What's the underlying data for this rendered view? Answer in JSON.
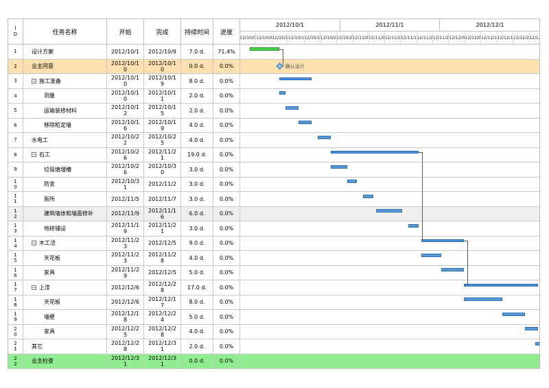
{
  "columns": {
    "id_top": "I",
    "id_bottom": "D",
    "name": "任务名称",
    "start": "开始",
    "end": "完成",
    "duration": "持续时间",
    "progress": "进度"
  },
  "timeline": {
    "months": [
      "2012/10/1",
      "2012/11/1",
      "2012/12/1"
    ],
    "sub_ticks": [
      "12/10/0",
      "12/10/0",
      "12/10/1",
      "12/10/1",
      "12/10/1",
      "12/10/2",
      "12/10/2",
      "12/11/0",
      "12/11/0",
      "12/11/1",
      "12/11/1",
      "12/11/2",
      "12/11/2",
      "12/12/0",
      "12/12/0",
      "12/12/1",
      "12/12/1",
      "12/12/2",
      "12/12/2"
    ]
  },
  "tasks": [
    {
      "id": [
        "1"
      ],
      "name": "设计方案",
      "start": "2012/10/1",
      "end": "2012/10/9",
      "duration": "7.0 d.",
      "progress": "71.4%",
      "highlight": "",
      "indent": false,
      "summary": false
    },
    {
      "id": [
        "2"
      ],
      "name": "业主同意",
      "start": "2012/10/10",
      "end": "2012/10/10",
      "duration": "0.0 d.",
      "progress": "0.0%",
      "highlight": "orange",
      "indent": false,
      "summary": false
    },
    {
      "id": [
        "3"
      ],
      "name": "施工准备",
      "start": "2012/10/10",
      "end": "2012/10/19",
      "duration": "8.0 d.",
      "progress": "0.0%",
      "highlight": "",
      "indent": false,
      "summary": true
    },
    {
      "id": [
        "4"
      ],
      "name": "测量",
      "start": "2012/10/10",
      "end": "2012/10/11",
      "duration": "2.0 d.",
      "progress": "0.0%",
      "highlight": "",
      "indent": true,
      "summary": false
    },
    {
      "id": [
        "5"
      ],
      "name": "运输装修材料",
      "start": "2012/10/12",
      "end": "2012/10/15",
      "duration": "2.0 d.",
      "progress": "0.0%",
      "highlight": "",
      "indent": true,
      "summary": false
    },
    {
      "id": [
        "6"
      ],
      "name": "移除柜定墙",
      "start": "2012/10/16",
      "end": "2012/10/19",
      "duration": "4.0 d.",
      "progress": "0.0%",
      "highlight": "",
      "indent": true,
      "summary": false
    },
    {
      "id": [
        "7"
      ],
      "name": "水电工",
      "start": "2012/10/22",
      "end": "2012/10/25",
      "duration": "4.0 d.",
      "progress": "0.0%",
      "highlight": "",
      "indent": false,
      "summary": false
    },
    {
      "id": [
        "8"
      ],
      "name": "石工",
      "start": "2012/10/26",
      "end": "2012/11/21",
      "duration": "19.0 d.",
      "progress": "0.0%",
      "highlight": "",
      "indent": false,
      "summary": true
    },
    {
      "id": [
        "9"
      ],
      "name": "垃圾填埋槽",
      "start": "2012/10/26",
      "end": "2012/10/30",
      "duration": "3.0 d.",
      "progress": "0.0%",
      "highlight": "",
      "indent": true,
      "summary": false
    },
    {
      "id": [
        "1",
        "0"
      ],
      "name": "防变",
      "start": "2012/10/31",
      "end": "2012/11/2",
      "duration": "3.0 d.",
      "progress": "0.0%",
      "highlight": "",
      "indent": true,
      "summary": false
    },
    {
      "id": [
        "1",
        "1"
      ],
      "name": "厕所",
      "start": "2012/11/5",
      "end": "2012/11/7",
      "duration": "3.0 d.",
      "progress": "0.0%",
      "highlight": "",
      "indent": true,
      "summary": false
    },
    {
      "id": [
        "1",
        "2"
      ],
      "name": "建筑墙体和墙面修补",
      "start": "2012/11/9",
      "end": "2012/11/16",
      "duration": "6.0 d.",
      "progress": "0.0%",
      "highlight": "gray",
      "indent": true,
      "summary": false
    },
    {
      "id": [
        "1",
        "3"
      ],
      "name": "地砖铺设",
      "start": "2012/11/19",
      "end": "2012/11/21",
      "duration": "3.0 d.",
      "progress": "0.0%",
      "highlight": "",
      "indent": true,
      "summary": false
    },
    {
      "id": [
        "1",
        "4"
      ],
      "name": "木工活",
      "start": "2012/11/23",
      "end": "2012/12/5",
      "duration": "9.0 d.",
      "progress": "0.0%",
      "highlight": "",
      "indent": false,
      "summary": true
    },
    {
      "id": [
        "1",
        "5"
      ],
      "name": "天花板",
      "start": "2012/11/23",
      "end": "2012/11/28",
      "duration": "4.0 d.",
      "progress": "0.0%",
      "highlight": "",
      "indent": true,
      "summary": false
    },
    {
      "id": [
        "1",
        "6"
      ],
      "name": "家具",
      "start": "2012/11/29",
      "end": "2012/12/5",
      "duration": "5.0 d.",
      "progress": "0.0%",
      "highlight": "",
      "indent": true,
      "summary": false
    },
    {
      "id": [
        "1",
        "7"
      ],
      "name": "上漆",
      "start": "2012/12/6",
      "end": "2012/12/28",
      "duration": "17.0 d.",
      "progress": "0.0%",
      "highlight": "",
      "indent": false,
      "summary": true
    },
    {
      "id": [
        "1",
        "8"
      ],
      "name": "天花板",
      "start": "2012/12/6",
      "end": "2012/12/17",
      "duration": "8.0 d.",
      "progress": "0.0%",
      "highlight": "",
      "indent": true,
      "summary": false
    },
    {
      "id": [
        "1",
        "9"
      ],
      "name": "墙壁",
      "start": "2012/12/18",
      "end": "2012/12/24",
      "duration": "5.0 d.",
      "progress": "0.0%",
      "highlight": "",
      "indent": true,
      "summary": false
    },
    {
      "id": [
        "2",
        "0"
      ],
      "name": "家具",
      "start": "2012/12/25",
      "end": "2012/12/28",
      "duration": "4.0 d.",
      "progress": "0.0%",
      "highlight": "",
      "indent": true,
      "summary": false
    },
    {
      "id": [
        "2",
        "1"
      ],
      "name": "其它",
      "start": "2012/12/28",
      "end": "2012/12/31",
      "duration": "2.0 d.",
      "progress": "0.0%",
      "highlight": "",
      "indent": false,
      "summary": false
    },
    {
      "id": [
        "2",
        "2"
      ],
      "name": "业主检查",
      "start": "2012/12/31",
      "end": "2012/12/31",
      "duration": "0.0 d.",
      "progress": "0.0%",
      "highlight": "green",
      "indent": false,
      "summary": false
    }
  ],
  "milestone_label": "确认设计",
  "colors": {
    "bar": "#5b9bd5",
    "done": "#4ad14a",
    "orange_row": "#fde0b0",
    "green_row": "#90ee90"
  }
}
